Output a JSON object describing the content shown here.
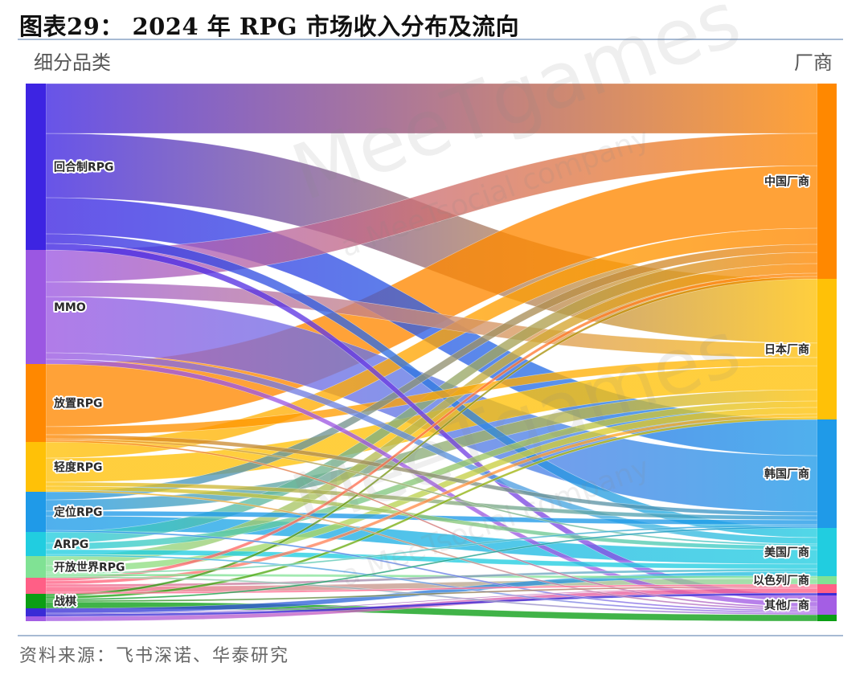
{
  "title": "图表29： 2024 年 RPG 市场收入分布及流向",
  "left_header": "细分品类",
  "right_header": "厂商",
  "source": "资料来源：飞书深诺、华泰研究",
  "watermark": {
    "brand": "MeeTgames",
    "tagline": "a MeeTsocial company"
  },
  "chart_data": {
    "type": "sankey",
    "title": "2024 年 RPG 市场收入分布及流向",
    "source_column_label": "细分品类",
    "target_column_label": "厂商",
    "sources": [
      {
        "id": "s_turn",
        "label": "回合制RPG",
        "color": "#3d24e2"
      },
      {
        "id": "s_mmo",
        "label": "MMO",
        "color": "#9b57e2"
      },
      {
        "id": "s_idle",
        "label": "放置RPG",
        "color": "#ff8800"
      },
      {
        "id": "s_casual",
        "label": "轻度RPG",
        "color": "#ffc107"
      },
      {
        "id": "s_pos",
        "label": "定位RPG",
        "color": "#1f9ae8"
      },
      {
        "id": "s_arpg",
        "label": "ARPG",
        "color": "#21cde0"
      },
      {
        "id": "s_open",
        "label": "开放世界RPG",
        "color": "#80e294"
      },
      {
        "id": "s_pink",
        "label": "",
        "color": "#ff5f86"
      },
      {
        "id": "s_slg",
        "label": "战棋",
        "color": "#0b9e14"
      },
      {
        "id": "s_dblue",
        "label": "",
        "color": "#3a2bd6"
      },
      {
        "id": "s_purple",
        "label": "",
        "color": "#a45ee4"
      }
    ],
    "targets": [
      {
        "id": "t_cn",
        "label": "中国厂商",
        "color": "#ff8800"
      },
      {
        "id": "t_jp",
        "label": "日本厂商",
        "color": "#ffc107"
      },
      {
        "id": "t_kr",
        "label": "韩国厂商",
        "color": "#1f9ae8"
      },
      {
        "id": "t_us",
        "label": "美国厂商",
        "color": "#21cde0"
      },
      {
        "id": "t_il",
        "label": "以色列厂商",
        "color": "#80e294"
      },
      {
        "id": "t_pink",
        "label": "",
        "color": "#ff5f86"
      },
      {
        "id": "t_dblue",
        "label": "",
        "color": "#3a2bd6"
      },
      {
        "id": "t_other",
        "label": "其他厂商",
        "color": "#a45ee4"
      },
      {
        "id": "t_green",
        "label": "",
        "color": "#0b9e14"
      }
    ],
    "links": [
      {
        "source": "s_turn",
        "target": "t_cn",
        "value": 62
      },
      {
        "source": "s_turn",
        "target": "t_jp",
        "value": 80
      },
      {
        "source": "s_turn",
        "target": "t_kr",
        "value": 45
      },
      {
        "source": "s_turn",
        "target": "t_us",
        "value": 12
      },
      {
        "source": "s_turn",
        "target": "t_other",
        "value": 8
      },
      {
        "source": "s_mmo",
        "target": "t_cn",
        "value": 40
      },
      {
        "source": "s_mmo",
        "target": "t_jp",
        "value": 18
      },
      {
        "source": "s_mmo",
        "target": "t_kr",
        "value": 70
      },
      {
        "source": "s_mmo",
        "target": "t_us",
        "value": 8
      },
      {
        "source": "s_mmo",
        "target": "t_other",
        "value": 6
      },
      {
        "source": "s_idle",
        "target": "t_cn",
        "value": 78
      },
      {
        "source": "s_idle",
        "target": "t_jp",
        "value": 10
      },
      {
        "source": "s_idle",
        "target": "t_kr",
        "value": 5
      },
      {
        "source": "s_idle",
        "target": "t_us",
        "value": 2
      },
      {
        "source": "s_idle",
        "target": "t_other",
        "value": 2
      },
      {
        "source": "s_casual",
        "target": "t_cn",
        "value": 20
      },
      {
        "source": "s_casual",
        "target": "t_jp",
        "value": 30
      },
      {
        "source": "s_casual",
        "target": "t_kr",
        "value": 5
      },
      {
        "source": "s_casual",
        "target": "t_us",
        "value": 5
      },
      {
        "source": "s_casual",
        "target": "t_other",
        "value": 2
      },
      {
        "source": "s_pos",
        "target": "t_cn",
        "value": 10
      },
      {
        "source": "s_pos",
        "target": "t_jp",
        "value": 14
      },
      {
        "source": "s_pos",
        "target": "t_kr",
        "value": 6
      },
      {
        "source": "s_pos",
        "target": "t_us",
        "value": 18
      },
      {
        "source": "s_pos",
        "target": "t_other",
        "value": 2
      },
      {
        "source": "s_arpg",
        "target": "t_cn",
        "value": 14
      },
      {
        "source": "s_arpg",
        "target": "t_jp",
        "value": 8
      },
      {
        "source": "s_arpg",
        "target": "t_us",
        "value": 6
      },
      {
        "source": "s_arpg",
        "target": "t_other",
        "value": 2
      },
      {
        "source": "s_open",
        "target": "t_cn",
        "value": 12
      },
      {
        "source": "s_open",
        "target": "t_jp",
        "value": 8
      },
      {
        "source": "s_open",
        "target": "t_kr",
        "value": 2
      },
      {
        "source": "s_open",
        "target": "t_il",
        "value": 3
      },
      {
        "source": "s_open",
        "target": "t_other",
        "value": 2
      },
      {
        "source": "s_pink",
        "target": "t_cn",
        "value": 4
      },
      {
        "source": "s_pink",
        "target": "t_jp",
        "value": 4
      },
      {
        "source": "s_pink",
        "target": "t_us",
        "value": 3
      },
      {
        "source": "s_pink",
        "target": "t_il",
        "value": 7
      },
      {
        "source": "s_pink",
        "target": "t_pink",
        "value": 2
      },
      {
        "source": "s_slg",
        "target": "t_cn",
        "value": 3
      },
      {
        "source": "s_slg",
        "target": "t_jp",
        "value": 3
      },
      {
        "source": "s_slg",
        "target": "t_kr",
        "value": 2
      },
      {
        "source": "s_slg",
        "target": "t_pink",
        "value": 2
      },
      {
        "source": "s_slg",
        "target": "t_green",
        "value": 8
      },
      {
        "source": "s_dblue",
        "target": "t_us",
        "value": 6
      },
      {
        "source": "s_dblue",
        "target": "t_pink",
        "value": 1
      },
      {
        "source": "s_dblue",
        "target": "t_dblue",
        "value": 3
      },
      {
        "source": "s_purple",
        "target": "t_pink",
        "value": 6
      }
    ]
  }
}
